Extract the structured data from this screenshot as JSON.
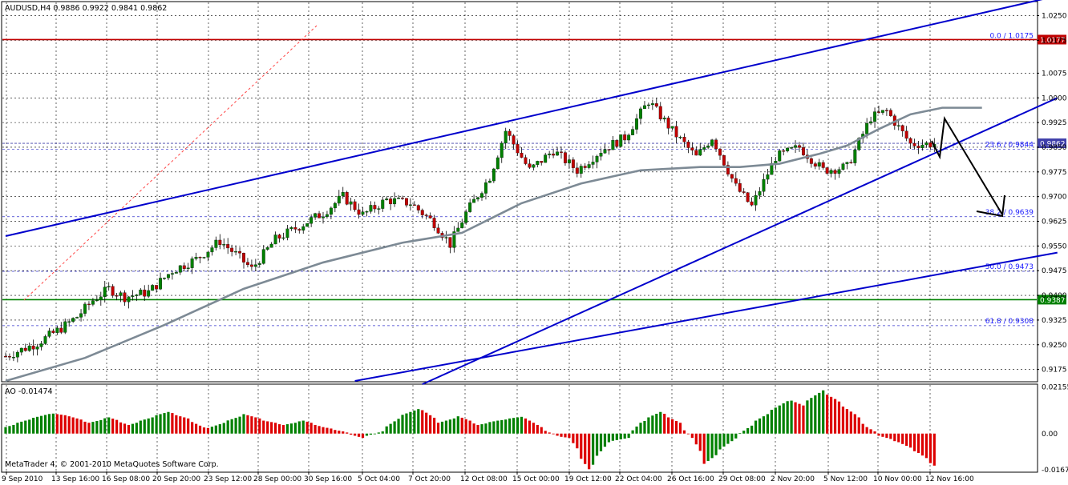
{
  "chart_data": [
    {
      "type": "candlestick",
      "symbol": "AUDUSD",
      "timeframe": "H4",
      "header": {
        "symbol_tf": "AUDUSD,H4",
        "ohlc": "0.9886 0.9922 0.9841 0.9862"
      },
      "ylim": [
        0.914,
        1.029
      ],
      "price_ticks": [
        "1.0250",
        "1.0175",
        "1.0075",
        "1.0000",
        "0.9925",
        "0.9850",
        "0.9775",
        "0.9700",
        "0.9625",
        "0.9550",
        "0.9475",
        "0.9400",
        "0.9325",
        "0.9250",
        "0.9175"
      ],
      "price_tick_values": [
        1.025,
        1.0175,
        1.0075,
        1.0,
        0.9925,
        0.985,
        0.9775,
        0.97,
        0.9625,
        0.955,
        0.9475,
        0.94,
        0.9325,
        0.925,
        0.9175
      ],
      "time_labels": [
        "9 Sep 2010",
        "13 Sep 16:00",
        "16 Sep 08:00",
        "20 Sep 20:00",
        "23 Sep 12:00",
        "28 Sep 00:00",
        "30 Sep 16:00",
        "5 Oct 04:00",
        "7 Oct 20:00",
        "12 Oct 08:00",
        "15 Oct 00:00",
        "19 Oct 12:00",
        "22 Oct 04:00",
        "26 Oct 16:00",
        "29 Oct 08:00",
        "2 Nov 20:00",
        "5 Nov 12:00",
        "10 Nov 00:00",
        "12 Nov 16:00"
      ],
      "bar_count": 235,
      "anchors": [
        [
          0,
          0.9215
        ],
        [
          8,
          0.9255
        ],
        [
          14,
          0.93
        ],
        [
          18,
          0.9335
        ],
        [
          22,
          0.9385
        ],
        [
          26,
          0.942
        ],
        [
          30,
          0.9395
        ],
        [
          36,
          0.941
        ],
        [
          42,
          0.9475
        ],
        [
          48,
          0.951
        ],
        [
          54,
          0.9565
        ],
        [
          58,
          0.9525
        ],
        [
          62,
          0.948
        ],
        [
          68,
          0.957
        ],
        [
          74,
          0.961
        ],
        [
          80,
          0.965
        ],
        [
          85,
          0.97
        ],
        [
          90,
          0.9645
        ],
        [
          96,
          0.969
        ],
        [
          102,
          0.968
        ],
        [
          108,
          0.962
        ],
        [
          112,
          0.9555
        ],
        [
          116,
          0.965
        ],
        [
          122,
          0.976
        ],
        [
          126,
          0.99
        ],
        [
          132,
          0.978
        ],
        [
          138,
          0.984
        ],
        [
          144,
          0.978
        ],
        [
          150,
          0.984
        ],
        [
          156,
          0.988
        ],
        [
          162,
          0.999
        ],
        [
          168,
          0.99
        ],
        [
          174,
          0.982
        ],
        [
          178,
          0.988
        ],
        [
          184,
          0.973
        ],
        [
          188,
          0.967
        ],
        [
          194,
          0.982
        ],
        [
          200,
          0.985
        ],
        [
          206,
          0.978
        ],
        [
          212,
          0.979
        ],
        [
          218,
          0.994
        ],
        [
          222,
          0.996
        ],
        [
          228,
          0.986
        ]
      ],
      "ma_series": {
        "color": "#7d8a95",
        "points": [
          [
            0,
            0.914
          ],
          [
            20,
            0.921
          ],
          [
            40,
            0.931
          ],
          [
            60,
            0.942
          ],
          [
            80,
            0.95
          ],
          [
            100,
            0.956
          ],
          [
            115,
            0.959
          ],
          [
            130,
            0.968
          ],
          [
            145,
            0.974
          ],
          [
            160,
            0.978
          ],
          [
            175,
            0.979
          ],
          [
            185,
            0.979
          ],
          [
            195,
            0.98
          ],
          [
            205,
            0.983
          ],
          [
            212,
            0.9855
          ],
          [
            220,
            0.9905
          ],
          [
            228,
            0.995
          ],
          [
            236,
            0.997
          ],
          [
            246,
            0.997
          ]
        ]
      },
      "levels": [
        {
          "price": 1.0177,
          "color": "#c00000",
          "badge": "1.0177",
          "style": "solid"
        },
        {
          "price": 0.9387,
          "color": "#008000",
          "badge": "0.9387",
          "style": "solid"
        },
        {
          "price": 0.9862,
          "color": "#4040aa",
          "badge": "0.9862",
          "style": "dashed"
        }
      ],
      "fib_levels": [
        {
          "price": 1.0175,
          "label": "0.0 / 1.0175"
        },
        {
          "price": 0.9844,
          "label": "23.6 / 0.9844"
        },
        {
          "price": 0.9639,
          "label": "38.2 / 0.9639"
        },
        {
          "price": 0.9473,
          "label": "50.0 / 0.9473"
        },
        {
          "price": 0.9308,
          "label": "61.8 / 0.9308"
        }
      ],
      "channel_lines": [
        {
          "color": "#0000cc",
          "p1": [
            0,
            0.958
          ],
          "p2": [
            265,
            1.031
          ]
        },
        {
          "color": "#0000cc",
          "p1": [
            105,
            0.913
          ],
          "p2": [
            265,
            1.0
          ]
        },
        {
          "color": "#0000cc",
          "p1": [
            88,
            0.914
          ],
          "p2": [
            265,
            0.953
          ]
        }
      ],
      "colors": {
        "up": "#008000",
        "down": "#c00000",
        "grid": "#000000",
        "channel": "#0000cc"
      }
    },
    {
      "type": "bar",
      "name": "AO",
      "header": "AO -0.01474",
      "ylim": [
        -0.0175,
        0.0225
      ],
      "ticks": [
        "0.02155",
        "0.00",
        "-0.0167"
      ],
      "tick_values": [
        0.02155,
        0.0,
        -0.0167
      ],
      "anchors": [
        [
          0,
          0.003
        ],
        [
          6,
          0.006
        ],
        [
          14,
          0.0095
        ],
        [
          20,
          0.008
        ],
        [
          26,
          0.005
        ],
        [
          32,
          0.0075
        ],
        [
          38,
          0.004
        ],
        [
          44,
          0.007
        ],
        [
          50,
          0.01
        ],
        [
          56,
          0.007
        ],
        [
          62,
          0.002
        ],
        [
          68,
          0.0055
        ],
        [
          74,
          0.009
        ],
        [
          80,
          0.006
        ],
        [
          86,
          0.004
        ],
        [
          92,
          0.006
        ],
        [
          98,
          0.003
        ],
        [
          104,
          0.001
        ],
        [
          110,
          -0.002
        ],
        [
          116,
          0.001
        ],
        [
          122,
          0.008
        ],
        [
          128,
          0.012
        ],
        [
          134,
          0.005
        ],
        [
          140,
          0.008
        ],
        [
          146,
          0.004
        ],
        [
          152,
          0.006
        ],
        [
          156,
          0.007
        ],
        [
          160,
          0.008
        ],
        [
          166,
          0.002
        ],
        [
          170,
          -0.001
        ],
        [
          174,
          -0.002
        ],
        [
          180,
          -0.0165
        ],
        [
          186,
          -0.004
        ],
        [
          192,
          -0.002
        ],
        [
          196,
          0.005
        ],
        [
          202,
          0.01
        ],
        [
          208,
          0.005
        ],
        [
          212,
          -0.002
        ],
        [
          216,
          -0.014
        ],
        [
          222,
          -0.006
        ],
        [
          226,
          -0.001
        ],
        [
          232,
          0.006
        ],
        [
          238,
          0.012
        ],
        [
          242,
          0.016
        ],
        [
          246,
          0.013
        ],
        [
          252,
          0.02
        ],
        [
          256,
          0.016
        ],
        [
          262,
          0.009
        ],
        [
          266,
          0.003
        ],
        [
          270,
          -0.001
        ],
        [
          276,
          -0.004
        ],
        [
          282,
          -0.009
        ],
        [
          288,
          -0.016
        ]
      ],
      "bar_count": 235
    }
  ],
  "footer": "MetaTrader 4, © 2001-2010 MetaQuotes Software Corp.",
  "annotations": {
    "arrow_color": "#000000"
  }
}
